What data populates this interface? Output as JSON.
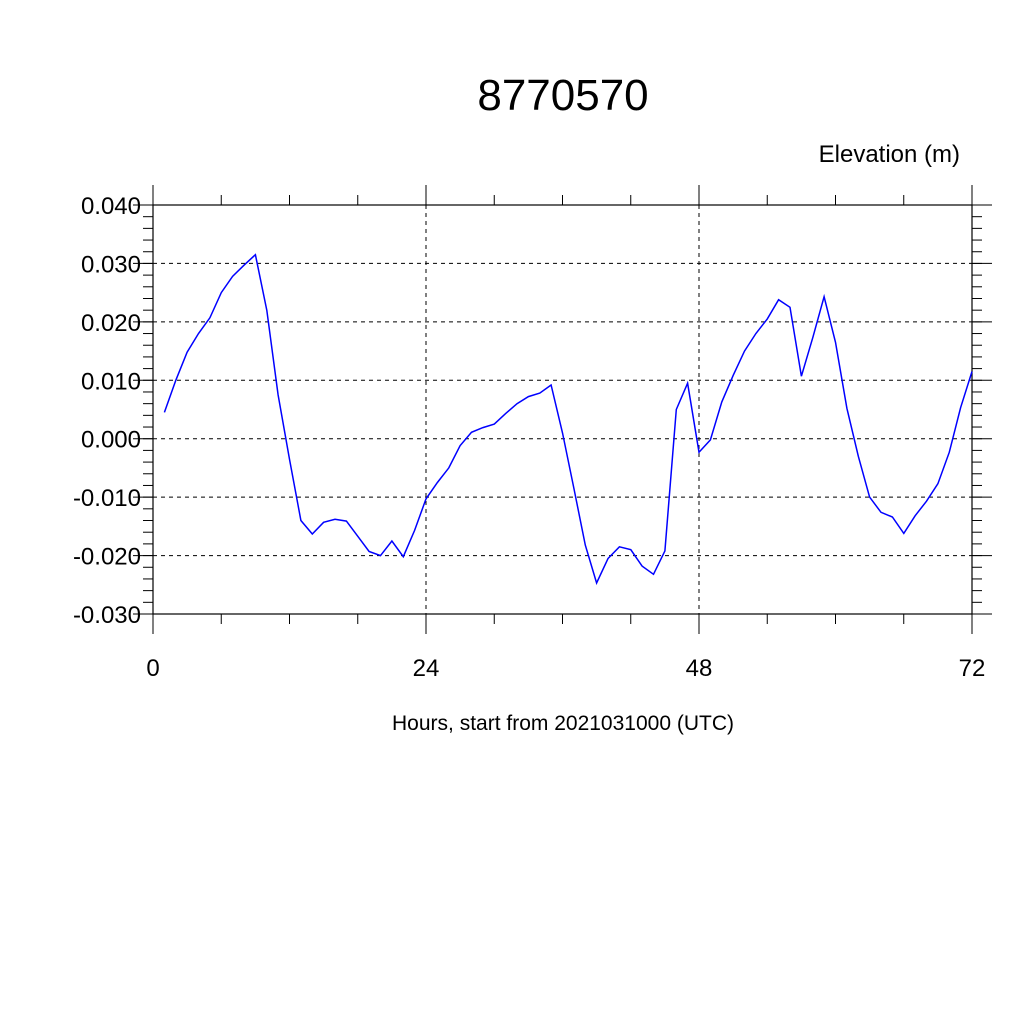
{
  "chart_data": {
    "type": "line",
    "title": "8770570",
    "ylabel": "Elevation (m)",
    "xlabel": "Hours, start from 2021031000 (UTC)",
    "xlim": [
      0,
      72
    ],
    "ylim": [
      -0.03,
      0.04
    ],
    "xticks": [
      0,
      24,
      48,
      72
    ],
    "xtick_labels": [
      "0",
      "24",
      "48",
      "72"
    ],
    "yticks": [
      -0.03,
      -0.02,
      -0.01,
      0.0,
      0.01,
      0.02,
      0.03,
      0.04
    ],
    "ytick_labels": [
      "-0.030",
      "-0.020",
      "-0.010",
      "0.000",
      "0.010",
      "0.020",
      "0.030",
      "0.040"
    ],
    "grid": true,
    "series": [
      {
        "color": "#0000ff",
        "x": [
          1,
          2,
          3,
          4,
          5,
          6,
          7,
          8,
          9,
          10,
          11,
          12,
          13,
          14,
          15,
          16,
          17,
          18,
          19,
          20,
          21,
          22,
          23,
          24,
          25,
          26,
          27,
          28,
          29,
          30,
          31,
          32,
          33,
          34,
          35,
          36,
          37,
          38,
          39,
          40,
          41,
          42,
          43,
          44,
          45,
          46,
          47,
          48,
          49,
          50,
          51,
          52,
          53,
          54,
          55,
          56,
          57,
          58,
          59,
          60,
          61,
          62,
          63,
          64,
          65,
          66,
          67,
          68,
          69,
          70,
          71,
          72
        ],
        "y": [
          0.0045,
          0.01,
          0.0148,
          0.018,
          0.0207,
          0.025,
          0.0278,
          0.0297,
          0.0315,
          0.022,
          0.0075,
          -0.0035,
          -0.014,
          -0.0163,
          -0.0143,
          -0.0138,
          -0.0141,
          -0.0167,
          -0.0193,
          -0.02,
          -0.0175,
          -0.0202,
          -0.0157,
          -0.0103,
          -0.0075,
          -0.005,
          -0.0012,
          0.0011,
          0.0019,
          0.0025,
          0.0043,
          0.006,
          0.0072,
          0.0078,
          0.0092,
          0.001,
          -0.0085,
          -0.0182,
          -0.0247,
          -0.0205,
          -0.0185,
          -0.019,
          -0.0218,
          -0.0232,
          -0.0192,
          0.005,
          0.0095,
          -0.0023,
          -0.0002,
          0.0063,
          0.0108,
          0.015,
          0.018,
          0.0205,
          0.0238,
          0.0225,
          0.0107,
          0.0173,
          0.0243,
          0.0165,
          0.0052,
          -0.003,
          -0.01,
          -0.0126,
          -0.0134,
          -0.0162,
          -0.0132,
          -0.0107,
          -0.0077,
          -0.0023,
          0.0053,
          0.0115
        ]
      }
    ]
  }
}
